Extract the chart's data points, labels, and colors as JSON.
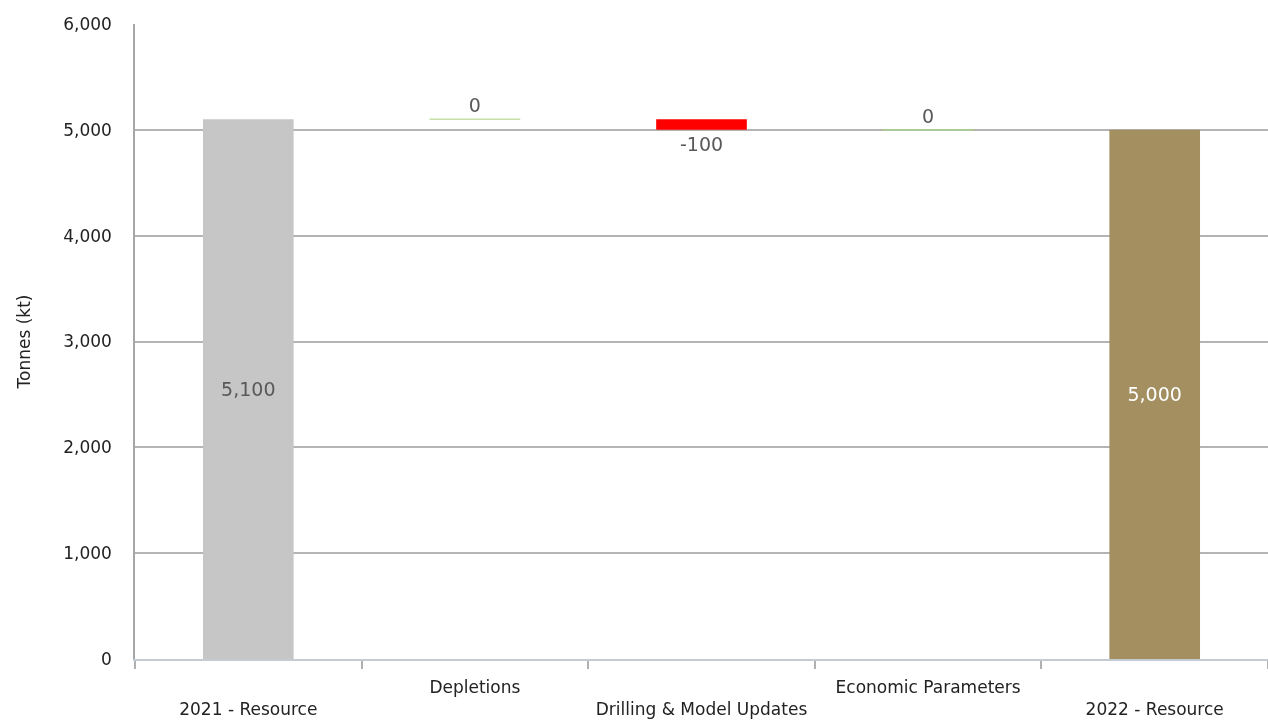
{
  "chart_data": {
    "type": "bar",
    "ylabel": "Tonnes (kt)",
    "categories": [
      "2021 - Resource",
      "Depletions",
      "Drilling & Model Updates",
      "Economic Parameters",
      "2022 - Resource"
    ],
    "values": [
      5100,
      0,
      -100,
      0,
      5000
    ],
    "base": [
      0,
      5100,
      5100,
      5000,
      0
    ],
    "colors": [
      "#c6c6c6",
      "#c5e0a5",
      "#ff0000",
      "#a9d18e",
      "#a38f5f"
    ],
    "value_labels": [
      "5,100",
      "0",
      "-100",
      "0",
      "5,000"
    ],
    "ylim": [
      0,
      6000
    ],
    "yticks": [
      0,
      {
        "value": 1000,
        "label": "1,000"
      },
      {
        "value": 2000,
        "label": "2,000"
      },
      {
        "value": 3000,
        "label": "3,000"
      },
      {
        "value": 4000,
        "label": "4,000"
      },
      {
        "value": 5000,
        "label": "5,000"
      },
      {
        "value": 6000,
        "label": "6,000"
      }
    ],
    "grid": "y",
    "legend": false
  }
}
